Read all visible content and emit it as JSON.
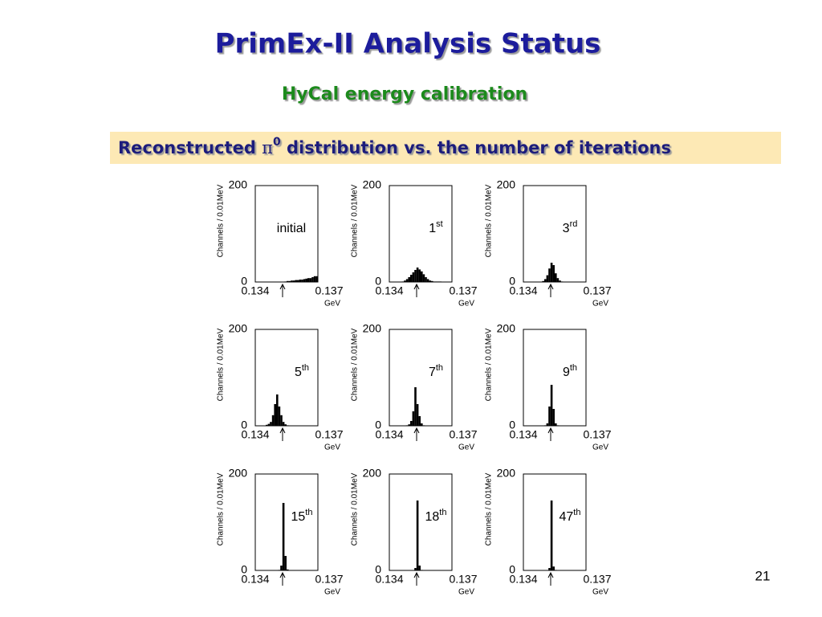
{
  "slide": {
    "title": "PrimEx-II Analysis Status",
    "subtitle": "HyCal energy calibration",
    "banner": {
      "before": "Reconstructed ",
      "symbol": "π",
      "superscript": "0",
      "after": " distribution vs. the number of iterations"
    },
    "page_number": "21"
  },
  "chart_data": [
    {
      "type": "histogram",
      "annotation": {
        "text": "initial"
      },
      "xlabel": "GeV",
      "ylabel": "Channels / 0.01MeV",
      "color": "#000000",
      "xlim": [
        0.134,
        0.137
      ],
      "xticks": [
        0.134,
        0.137
      ],
      "ylim": [
        0,
        200
      ],
      "yticks": [
        0,
        200
      ],
      "bins": [
        0.134,
        0.1341,
        0.1342,
        0.1343,
        0.1344,
        0.1345,
        0.1346,
        0.1347,
        0.1348,
        0.1349,
        0.135,
        0.1351,
        0.1352,
        0.1353,
        0.1354,
        0.1355,
        0.1356,
        0.1357,
        0.1358,
        0.1359,
        0.136,
        0.1361,
        0.1362,
        0.1363,
        0.1364,
        0.1365,
        0.1366,
        0.1367,
        0.1368,
        0.1369,
        0.137
      ],
      "counts": [
        0,
        0,
        0,
        0,
        0,
        0,
        0,
        0,
        0,
        0,
        0,
        0,
        0,
        0,
        1,
        2,
        2,
        3,
        3,
        4,
        4,
        5,
        5,
        6,
        7,
        8,
        8,
        10,
        12,
        12
      ]
    },
    {
      "type": "histogram",
      "annotation": {
        "text": "1",
        "superscript": "st"
      },
      "xlabel": "GeV",
      "ylabel": "Channels / 0.01MeV",
      "color": "#000000",
      "xlim": [
        0.134,
        0.137
      ],
      "xticks": [
        0.134,
        0.137
      ],
      "ylim": [
        0,
        200
      ],
      "yticks": [
        0,
        200
      ],
      "bins": [
        0.134,
        0.1341,
        0.1342,
        0.1343,
        0.1344,
        0.1345,
        0.1346,
        0.1347,
        0.1348,
        0.1349,
        0.135,
        0.1351,
        0.1352,
        0.1353,
        0.1354,
        0.1355,
        0.1356,
        0.1357,
        0.1358,
        0.1359,
        0.136,
        0.1361,
        0.1362,
        0.1363,
        0.1364,
        0.1365,
        0.1366,
        0.1367,
        0.1368,
        0.1369,
        0.137
      ],
      "counts": [
        0,
        0,
        0,
        0,
        0,
        0,
        1,
        3,
        6,
        10,
        15,
        20,
        25,
        30,
        26,
        22,
        16,
        10,
        6,
        3,
        2,
        1,
        1,
        1,
        1,
        0,
        0,
        0,
        0,
        0
      ]
    },
    {
      "type": "histogram",
      "annotation": {
        "text": "3",
        "superscript": "rd"
      },
      "xlabel": "GeV",
      "ylabel": "Channels / 0.01MeV",
      "color": "#000000",
      "xlim": [
        0.134,
        0.137
      ],
      "xticks": [
        0.134,
        0.137
      ],
      "ylim": [
        0,
        200
      ],
      "yticks": [
        0,
        200
      ],
      "bins": [
        0.134,
        0.1341,
        0.1342,
        0.1343,
        0.1344,
        0.1345,
        0.1346,
        0.1347,
        0.1348,
        0.1349,
        0.135,
        0.1351,
        0.1352,
        0.1353,
        0.1354,
        0.1355,
        0.1356,
        0.1357,
        0.1358,
        0.1359,
        0.136,
        0.1361,
        0.1362,
        0.1363,
        0.1364,
        0.1365,
        0.1366,
        0.1367,
        0.1368,
        0.1369,
        0.137
      ],
      "counts": [
        0,
        0,
        0,
        0,
        0,
        0,
        0,
        0,
        0,
        2,
        6,
        14,
        28,
        40,
        35,
        18,
        8,
        3,
        1,
        0,
        0,
        0,
        0,
        0,
        0,
        0,
        0,
        0,
        0,
        0
      ]
    },
    {
      "type": "histogram",
      "annotation": {
        "text": "5",
        "superscript": "th"
      },
      "xlabel": "GeV",
      "ylabel": "Channels / 0.01MeV",
      "color": "#000000",
      "xlim": [
        0.134,
        0.137
      ],
      "xticks": [
        0.134,
        0.137
      ],
      "ylim": [
        0,
        200
      ],
      "yticks": [
        0,
        200
      ],
      "bins": [
        0.134,
        0.1341,
        0.1342,
        0.1343,
        0.1344,
        0.1345,
        0.1346,
        0.1347,
        0.1348,
        0.1349,
        0.135,
        0.1351,
        0.1352,
        0.1353,
        0.1354,
        0.1355,
        0.1356,
        0.1357,
        0.1358,
        0.1359,
        0.136,
        0.1361,
        0.1362,
        0.1363,
        0.1364,
        0.1365,
        0.1366,
        0.1367,
        0.1368,
        0.1369,
        0.137
      ],
      "counts": [
        0,
        0,
        0,
        0,
        0,
        2,
        4,
        8,
        22,
        45,
        65,
        40,
        22,
        8,
        3,
        1,
        0,
        0,
        0,
        0,
        0,
        0,
        0,
        0,
        0,
        0,
        0,
        0,
        0,
        0
      ]
    },
    {
      "type": "histogram",
      "annotation": {
        "text": "7",
        "superscript": "th"
      },
      "xlabel": "GeV",
      "ylabel": "Channels / 0.01MeV",
      "color": "#000000",
      "xlim": [
        0.134,
        0.137
      ],
      "xticks": [
        0.134,
        0.137
      ],
      "ylim": [
        0,
        200
      ],
      "yticks": [
        0,
        200
      ],
      "bins": [
        0.134,
        0.1341,
        0.1342,
        0.1343,
        0.1344,
        0.1345,
        0.1346,
        0.1347,
        0.1348,
        0.1349,
        0.135,
        0.1351,
        0.1352,
        0.1353,
        0.1354,
        0.1355,
        0.1356,
        0.1357,
        0.1358,
        0.1359,
        0.136,
        0.1361,
        0.1362,
        0.1363,
        0.1364,
        0.1365,
        0.1366,
        0.1367,
        0.1368,
        0.1369,
        0.137
      ],
      "counts": [
        0,
        0,
        0,
        0,
        0,
        0,
        0,
        0,
        1,
        3,
        10,
        30,
        80,
        45,
        20,
        5,
        1,
        0,
        0,
        0,
        0,
        0,
        0,
        0,
        0,
        0,
        0,
        0,
        0,
        0
      ]
    },
    {
      "type": "histogram",
      "annotation": {
        "text": "9",
        "superscript": "th"
      },
      "xlabel": "GeV",
      "ylabel": "Channels / 0.01MeV",
      "color": "#000000",
      "xlim": [
        0.134,
        0.137
      ],
      "xticks": [
        0.134,
        0.137
      ],
      "ylim": [
        0,
        200
      ],
      "yticks": [
        0,
        200
      ],
      "bins": [
        0.134,
        0.1341,
        0.1342,
        0.1343,
        0.1344,
        0.1345,
        0.1346,
        0.1347,
        0.1348,
        0.1349,
        0.135,
        0.1351,
        0.1352,
        0.1353,
        0.1354,
        0.1355,
        0.1356,
        0.1357,
        0.1358,
        0.1359,
        0.136,
        0.1361,
        0.1362,
        0.1363,
        0.1364,
        0.1365,
        0.1366,
        0.1367,
        0.1368,
        0.1369,
        0.137
      ],
      "counts": [
        0,
        0,
        0,
        0,
        0,
        0,
        0,
        0,
        0,
        0,
        1,
        5,
        40,
        85,
        35,
        5,
        1,
        0,
        0,
        0,
        0,
        0,
        0,
        0,
        0,
        0,
        0,
        0,
        0,
        0
      ]
    },
    {
      "type": "histogram",
      "annotation": {
        "text": "15",
        "superscript": "th"
      },
      "xlabel": "GeV",
      "ylabel": "Channels / 0.01MeV",
      "color": "#000000",
      "xlim": [
        0.134,
        0.137
      ],
      "xticks": [
        0.134,
        0.137
      ],
      "ylim": [
        0,
        200
      ],
      "yticks": [
        0,
        200
      ],
      "bins": [
        0.134,
        0.1341,
        0.1342,
        0.1343,
        0.1344,
        0.1345,
        0.1346,
        0.1347,
        0.1348,
        0.1349,
        0.135,
        0.1351,
        0.1352,
        0.1353,
        0.1354,
        0.1355,
        0.1356,
        0.1357,
        0.1358,
        0.1359,
        0.136,
        0.1361,
        0.1362,
        0.1363,
        0.1364,
        0.1365,
        0.1366,
        0.1367,
        0.1368,
        0.1369,
        0.137
      ],
      "counts": [
        0,
        0,
        0,
        0,
        0,
        0,
        0,
        0,
        0,
        0,
        0,
        1,
        10,
        140,
        30,
        2,
        0,
        0,
        0,
        0,
        0,
        0,
        0,
        0,
        0,
        0,
        0,
        0,
        0,
        0
      ]
    },
    {
      "type": "histogram",
      "annotation": {
        "text": "18",
        "superscript": "th"
      },
      "xlabel": "GeV",
      "ylabel": "Channels / 0.01MeV",
      "color": "#000000",
      "xlim": [
        0.134,
        0.137
      ],
      "xticks": [
        0.134,
        0.137
      ],
      "ylim": [
        0,
        200
      ],
      "yticks": [
        0,
        200
      ],
      "bins": [
        0.134,
        0.1341,
        0.1342,
        0.1343,
        0.1344,
        0.1345,
        0.1346,
        0.1347,
        0.1348,
        0.1349,
        0.135,
        0.1351,
        0.1352,
        0.1353,
        0.1354,
        0.1355,
        0.1356,
        0.1357,
        0.1358,
        0.1359,
        0.136,
        0.1361,
        0.1362,
        0.1363,
        0.1364,
        0.1365,
        0.1366,
        0.1367,
        0.1368,
        0.1369,
        0.137
      ],
      "counts": [
        0,
        0,
        0,
        0,
        0,
        0,
        0,
        0,
        0,
        0,
        0,
        0,
        5,
        145,
        10,
        1,
        0,
        0,
        0,
        0,
        0,
        0,
        0,
        0,
        0,
        0,
        0,
        0,
        0,
        0
      ]
    },
    {
      "type": "histogram",
      "annotation": {
        "text": "47",
        "superscript": "th"
      },
      "xlabel": "GeV",
      "ylabel": "Channels / 0.01MeV",
      "color": "#000000",
      "xlim": [
        0.134,
        0.137
      ],
      "xticks": [
        0.134,
        0.137
      ],
      "ylim": [
        0,
        200
      ],
      "yticks": [
        0,
        200
      ],
      "bins": [
        0.134,
        0.1341,
        0.1342,
        0.1343,
        0.1344,
        0.1345,
        0.1346,
        0.1347,
        0.1348,
        0.1349,
        0.135,
        0.1351,
        0.1352,
        0.1353,
        0.1354,
        0.1355,
        0.1356,
        0.1357,
        0.1358,
        0.1359,
        0.136,
        0.1361,
        0.1362,
        0.1363,
        0.1364,
        0.1365,
        0.1366,
        0.1367,
        0.1368,
        0.1369,
        0.137
      ],
      "counts": [
        0,
        0,
        0,
        0,
        0,
        0,
        0,
        0,
        0,
        0,
        0,
        0,
        5,
        145,
        8,
        1,
        0,
        0,
        0,
        0,
        0,
        0,
        0,
        0,
        0,
        0,
        0,
        0,
        0,
        0
      ]
    }
  ]
}
